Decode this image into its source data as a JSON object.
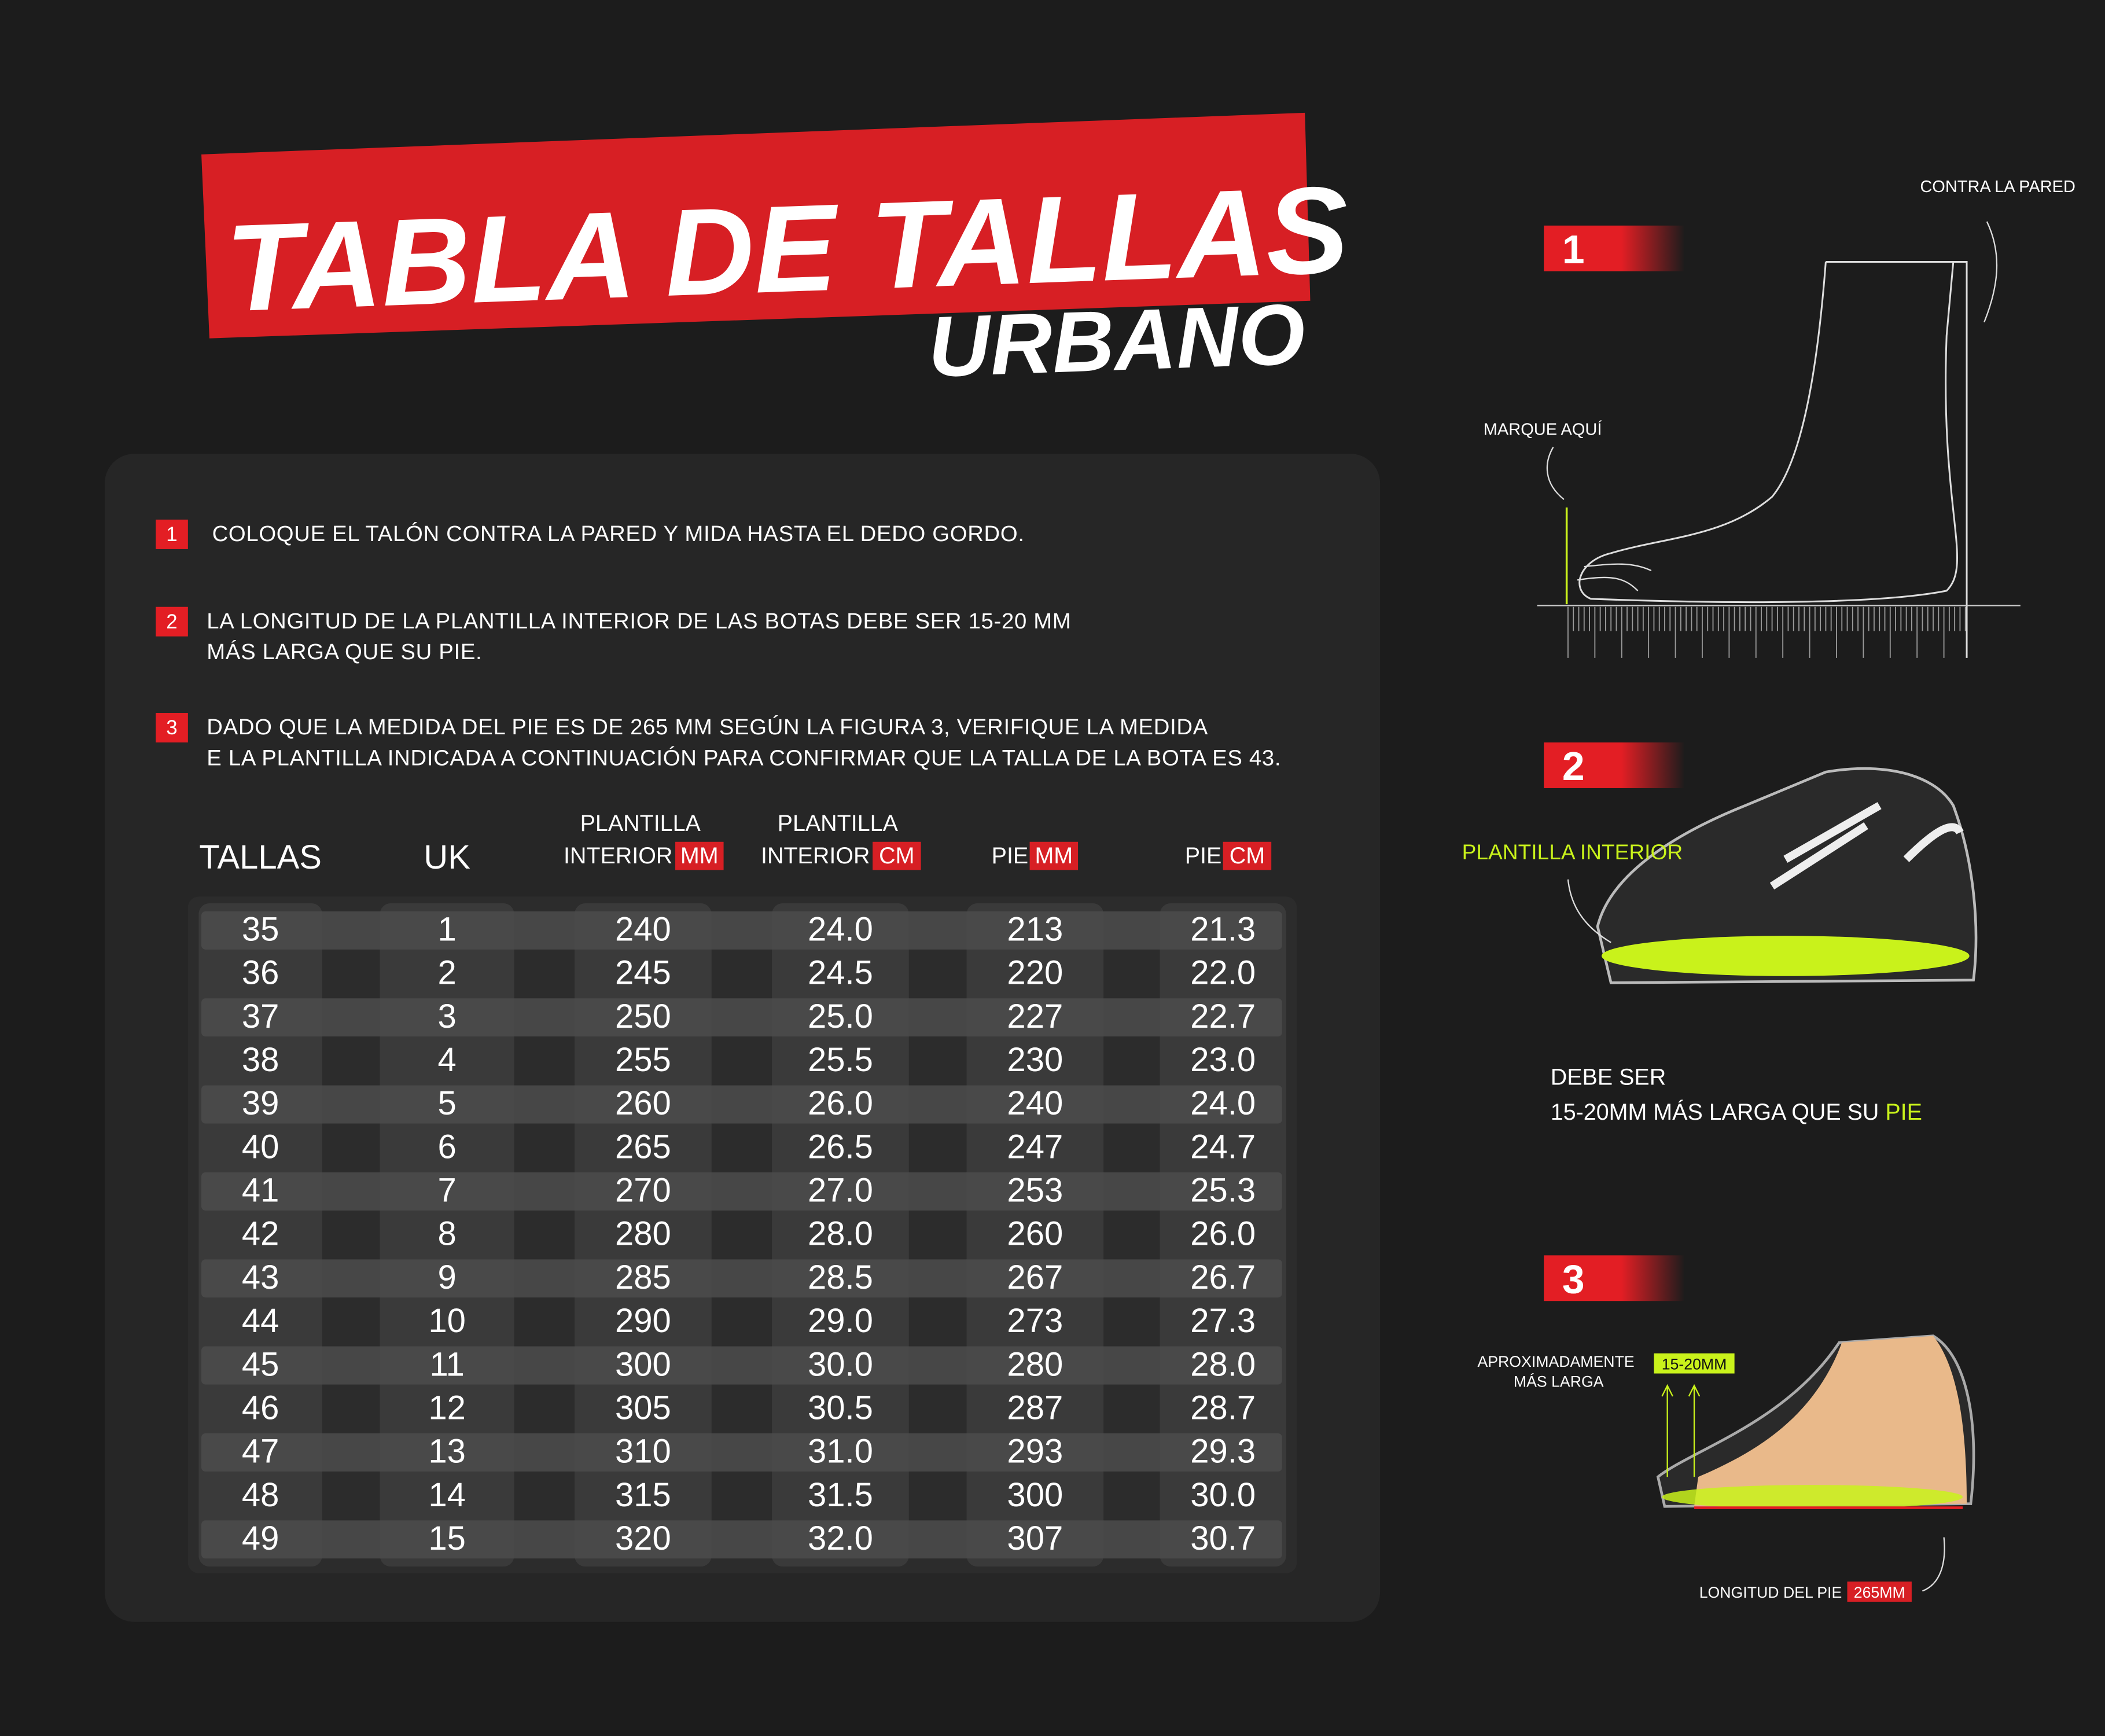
{
  "header": {
    "title": "TABLA DE TALLAS",
    "subtitle": "URBANO"
  },
  "instructions": [
    {
      "number": "1",
      "lines": [
        "COLOQUE EL TALÓN CONTRA LA PARED Y MIDA HASTA EL DEDO GORDO."
      ]
    },
    {
      "number": "2",
      "lines": [
        "LA LONGITUD DE LA PLANTILLA INTERIOR DE LAS BOTAS DEBE SER 15-20 MM",
        "MÁS LARGA QUE SU PIE."
      ]
    },
    {
      "number": "3",
      "lines": [
        "DADO QUE LA MEDIDA DEL PIE ES DE 265 MM SEGÚN LA FIGURA 3, VERIFIQUE LA MEDIDA",
        "E LA PLANTILLA INDICADA A CONTINUACIÓN PARA CONFIRMAR QUE LA TALLA DE LA BOTA ES 43."
      ]
    }
  ],
  "table": {
    "columns": [
      {
        "lines": [
          "TALLAS"
        ]
      },
      {
        "lines": [
          "UK"
        ]
      },
      {
        "lines": [
          "PLANTILLA",
          "INTERIOR"
        ],
        "unit": "MM"
      },
      {
        "lines": [
          "PLANTILLA",
          "INTERIOR"
        ],
        "unit": "CM"
      },
      {
        "lines": [
          "PIE"
        ],
        "unit": "MM"
      },
      {
        "lines": [
          "PIE"
        ],
        "unit": "CM"
      }
    ],
    "rows": [
      [
        "35",
        "1",
        "240",
        "24.0",
        "213",
        "21.3"
      ],
      [
        "36",
        "2",
        "245",
        "24.5",
        "220",
        "22.0"
      ],
      [
        "37",
        "3",
        "250",
        "25.0",
        "227",
        "22.7"
      ],
      [
        "38",
        "4",
        "255",
        "25.5",
        "230",
        "23.0"
      ],
      [
        "39",
        "5",
        "260",
        "26.0",
        "240",
        "24.0"
      ],
      [
        "40",
        "6",
        "265",
        "26.5",
        "247",
        "24.7"
      ],
      [
        "41",
        "7",
        "270",
        "27.0",
        "253",
        "25.3"
      ],
      [
        "42",
        "8",
        "280",
        "28.0",
        "260",
        "26.0"
      ],
      [
        "43",
        "9",
        "285",
        "28.5",
        "267",
        "26.7"
      ],
      [
        "44",
        "10",
        "290",
        "29.0",
        "273",
        "27.3"
      ],
      [
        "45",
        "11",
        "300",
        "30.0",
        "280",
        "28.0"
      ],
      [
        "46",
        "12",
        "305",
        "30.5",
        "287",
        "28.7"
      ],
      [
        "47",
        "13",
        "310",
        "31.0",
        "293",
        "29.3"
      ],
      [
        "48",
        "14",
        "315",
        "31.5",
        "300",
        "30.0"
      ],
      [
        "49",
        "15",
        "320",
        "32.0",
        "307",
        "30.7"
      ]
    ]
  },
  "figures": {
    "step1": {
      "number": "1",
      "wall_label": "CONTRA LA PARED",
      "mark_label": "MARQUE AQUÍ"
    },
    "step2": {
      "number": "2",
      "insole_label": "PLANTILLA INTERIOR",
      "note_line1": "DEBE SER",
      "note_line2": "15-20MM MÁS LARGA QUE SU",
      "note_highlight": "PIE"
    },
    "step3": {
      "number": "3",
      "approx_line1": "APROXIMADAMENTE",
      "approx_line2": "MÁS LARGA",
      "range": "15-20MM",
      "length_label": "LONGITUD DEL PIE",
      "length_value": "265MM"
    }
  }
}
